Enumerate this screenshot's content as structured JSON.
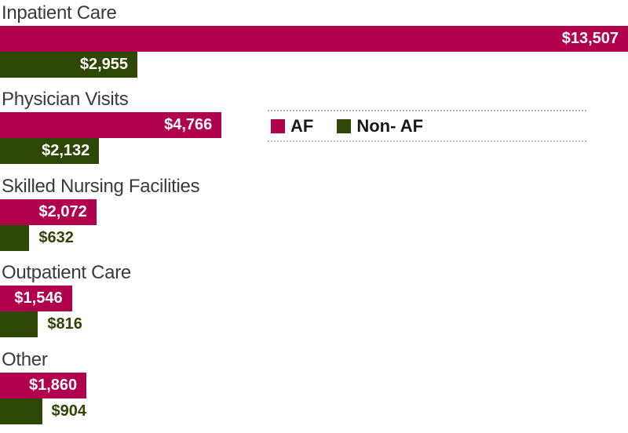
{
  "chart_data": {
    "type": "bar",
    "orientation": "horizontal",
    "title": "",
    "xlabel": "",
    "ylabel": "",
    "grid": false,
    "axes_visible": false,
    "xmax": 13507,
    "legend_position": "center-right",
    "categories": [
      "Inpatient Care",
      "Physician Visits",
      "Skilled Nursing Facilities",
      "Outpatient Care",
      "Other"
    ],
    "series": [
      {
        "name": "AF",
        "color": "#B1014D",
        "values": [
          13507,
          4766,
          2072,
          1546,
          1860
        ],
        "labels": [
          "$13,507",
          "$4,766",
          "$2,072",
          "$1,546",
          "$1,860"
        ]
      },
      {
        "name": "Non- AF",
        "color": "#2F4705",
        "values": [
          2955,
          2132,
          632,
          816,
          904
        ],
        "labels": [
          "$2,955",
          "$2,132",
          "$632",
          "$816",
          "$904"
        ]
      }
    ]
  },
  "legend": {
    "items": [
      {
        "label": "AF",
        "color": "#B1014D"
      },
      {
        "label": "Non- AF",
        "color": "#2F4705"
      }
    ]
  },
  "colors": {
    "af_bar": "#B1014D",
    "non_af_bar": "#2F4705",
    "category_text": "#3b3b3b",
    "legend_text": "#1a1a1a",
    "legend_border": "#b3b3b3",
    "inside_label_text": "#ffffff",
    "background": "#ffffff"
  }
}
